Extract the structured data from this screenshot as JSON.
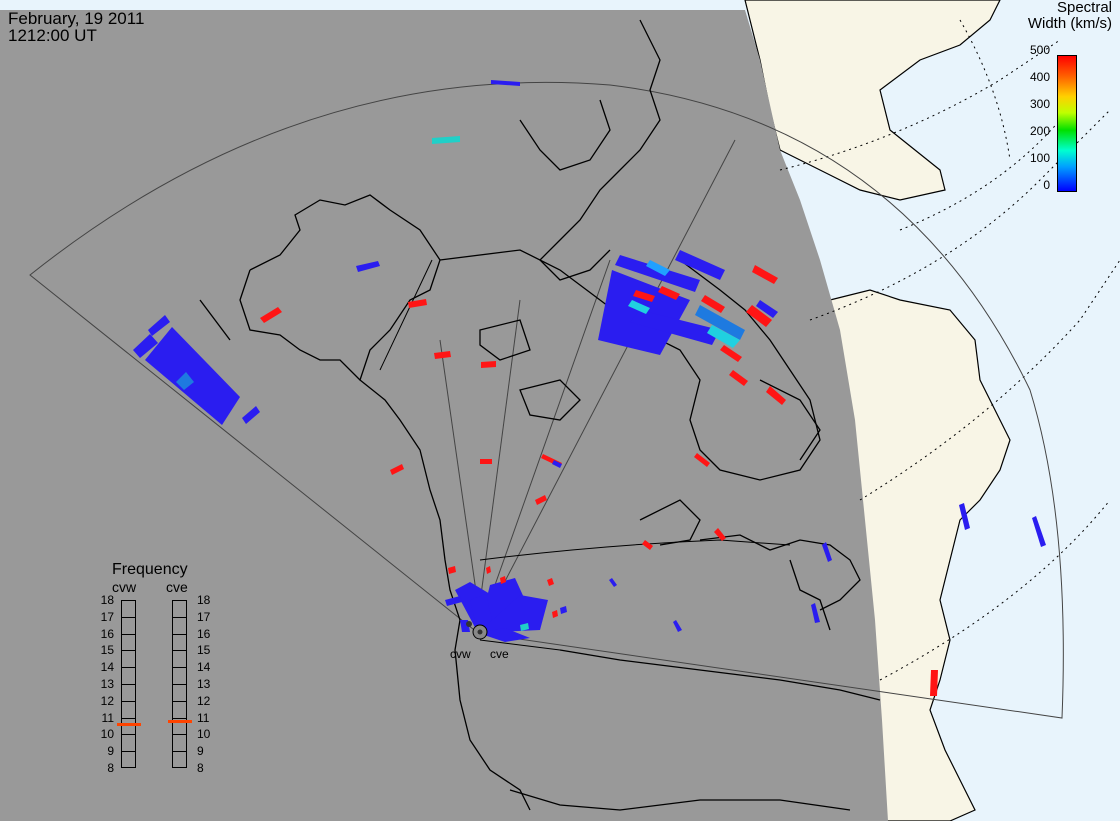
{
  "header": {
    "date": "February, 19 2011",
    "time": "1212:00 UT"
  },
  "colorbar": {
    "title_line1": "Spectral",
    "title_line2": "Width (km/s)",
    "ticks": [
      "500",
      "400",
      "300",
      "200",
      "100",
      "0"
    ],
    "min": 0,
    "max": 500,
    "colors": [
      "#0000ff",
      "#00a0ff",
      "#00ffd0",
      "#00e000",
      "#c0ff00",
      "#ffd000",
      "#ff6000",
      "#ff0000"
    ]
  },
  "frequency_panel": {
    "title": "Frequency",
    "radars": [
      "cvw",
      "cve"
    ],
    "scale": [
      "18",
      "17",
      "16",
      "15",
      "14",
      "13",
      "12",
      "11",
      "10",
      "9",
      "8"
    ],
    "cvw_mhz": 10.6,
    "cve_mhz": 10.8
  },
  "radar_sites": {
    "cvw_label": "cvw",
    "cve_label": "cve"
  },
  "colors": {
    "night": "#999999",
    "day_land": "#f8f5e6",
    "day_ocean": "#e8f4fc",
    "coastline": "#000000",
    "low_width": "#2020f0",
    "high_width": "#ff1515",
    "mid_width": "#20d8d0"
  }
}
